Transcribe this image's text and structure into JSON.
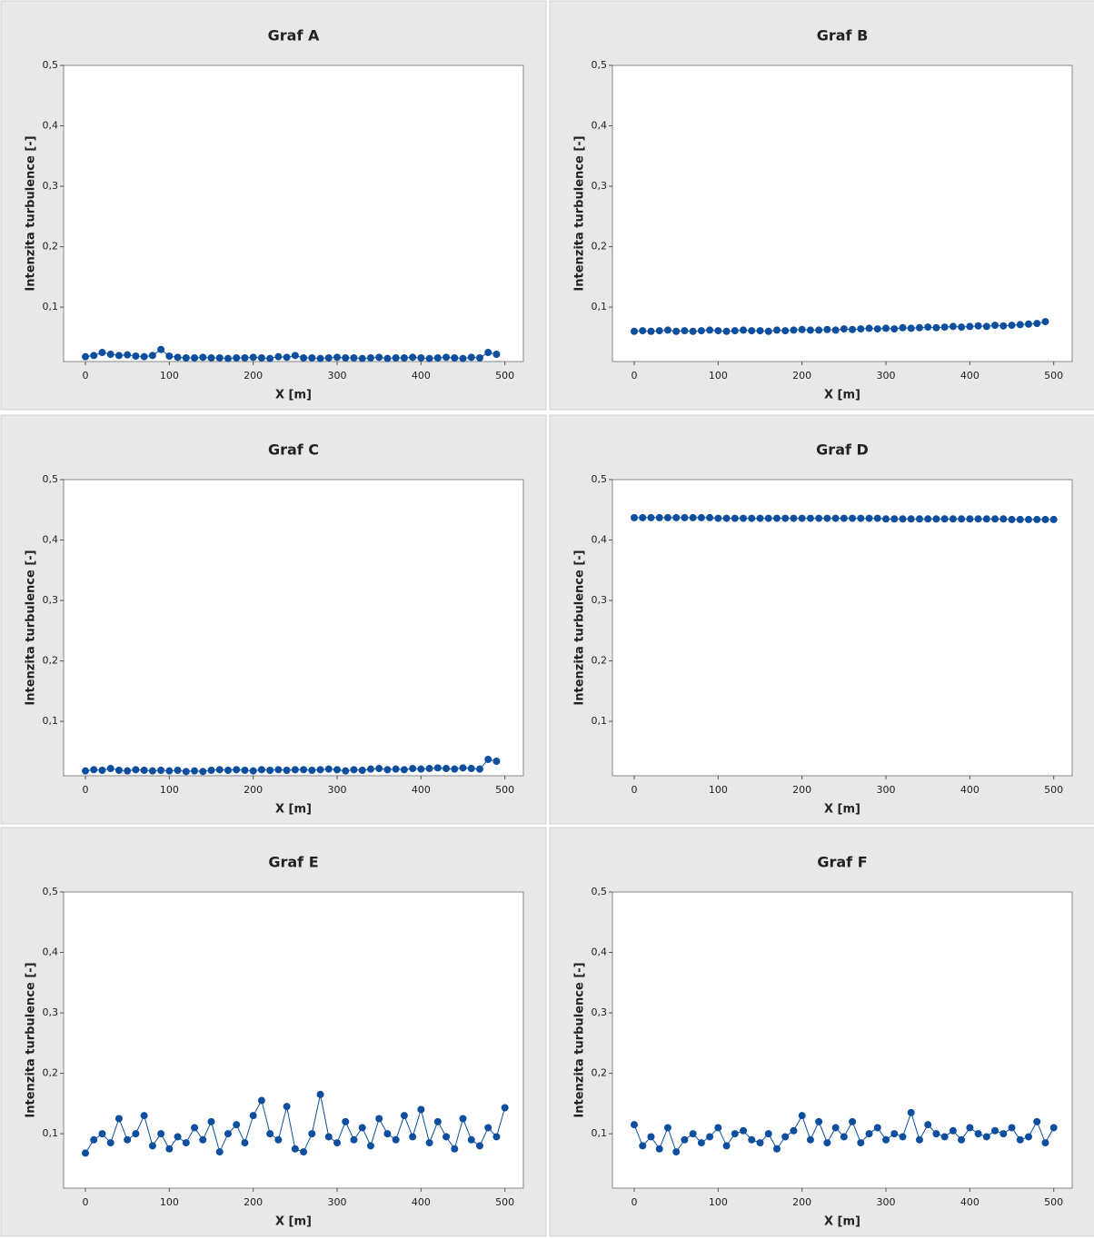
{
  "chart_data": [
    {
      "type": "line",
      "title": "Graf A",
      "xlabel": "X [m]",
      "ylabel": "Intenzita turbulence [-]",
      "color": "#0d4f9e",
      "xlim": [
        -26,
        522
      ],
      "ylim": [
        0.01,
        0.5
      ],
      "xticks": [
        0,
        100,
        200,
        300,
        400,
        500
      ],
      "yticks": [
        {
          "value": 0.1,
          "label": "0,1"
        },
        {
          "value": 0.2,
          "label": "0,2"
        },
        {
          "value": 0.3,
          "label": "0,3"
        },
        {
          "value": 0.4,
          "label": "0,4"
        },
        {
          "value": 0.5,
          "label": "0,5"
        }
      ],
      "x": [
        0,
        10,
        20,
        30,
        40,
        50,
        60,
        70,
        80,
        90,
        100,
        110,
        120,
        130,
        140,
        150,
        160,
        170,
        180,
        190,
        200,
        210,
        220,
        230,
        240,
        250,
        260,
        270,
        280,
        290,
        300,
        310,
        320,
        330,
        340,
        350,
        360,
        370,
        380,
        390,
        400,
        410,
        420,
        430,
        440,
        450,
        460,
        470,
        480,
        490
      ],
      "values": [
        0.018,
        0.02,
        0.025,
        0.022,
        0.02,
        0.021,
        0.019,
        0.018,
        0.02,
        0.03,
        0.019,
        0.017,
        0.016,
        0.016,
        0.017,
        0.016,
        0.016,
        0.015,
        0.016,
        0.016,
        0.017,
        0.016,
        0.015,
        0.018,
        0.017,
        0.02,
        0.016,
        0.016,
        0.015,
        0.016,
        0.017,
        0.016,
        0.016,
        0.015,
        0.016,
        0.017,
        0.015,
        0.016,
        0.016,
        0.017,
        0.016,
        0.015,
        0.016,
        0.017,
        0.016,
        0.015,
        0.017,
        0.016,
        0.025,
        0.022
      ]
    },
    {
      "type": "line",
      "title": "Graf B",
      "xlabel": "X [m]",
      "ylabel": "Intenzita turbulence [-]",
      "color": "#0d4f9e",
      "xlim": [
        -26,
        522
      ],
      "ylim": [
        0.01,
        0.5
      ],
      "xticks": [
        0,
        100,
        200,
        300,
        400,
        500
      ],
      "yticks": [
        {
          "value": 0.1,
          "label": "0,1"
        },
        {
          "value": 0.2,
          "label": "0,2"
        },
        {
          "value": 0.3,
          "label": "0,3"
        },
        {
          "value": 0.4,
          "label": "0,4"
        },
        {
          "value": 0.5,
          "label": "0,5"
        }
      ],
      "x": [
        0,
        10,
        20,
        30,
        40,
        50,
        60,
        70,
        80,
        90,
        100,
        110,
        120,
        130,
        140,
        150,
        160,
        170,
        180,
        190,
        200,
        210,
        220,
        230,
        240,
        250,
        260,
        270,
        280,
        290,
        300,
        310,
        320,
        330,
        340,
        350,
        360,
        370,
        380,
        390,
        400,
        410,
        420,
        430,
        440,
        450,
        460,
        470,
        480,
        490
      ],
      "values": [
        0.06,
        0.061,
        0.06,
        0.061,
        0.062,
        0.06,
        0.061,
        0.06,
        0.061,
        0.062,
        0.061,
        0.06,
        0.061,
        0.062,
        0.061,
        0.061,
        0.06,
        0.062,
        0.061,
        0.062,
        0.063,
        0.062,
        0.062,
        0.063,
        0.062,
        0.064,
        0.063,
        0.064,
        0.065,
        0.064,
        0.065,
        0.064,
        0.066,
        0.065,
        0.066,
        0.067,
        0.066,
        0.067,
        0.068,
        0.067,
        0.068,
        0.069,
        0.068,
        0.07,
        0.069,
        0.07,
        0.071,
        0.072,
        0.073,
        0.076
      ]
    },
    {
      "type": "line",
      "title": "Graf C",
      "xlabel": "X [m]",
      "ylabel": "Intenzita turbulence [-]",
      "color": "#0d4f9e",
      "xlim": [
        -26,
        522
      ],
      "ylim": [
        0.01,
        0.5
      ],
      "xticks": [
        0,
        100,
        200,
        300,
        400,
        500
      ],
      "yticks": [
        {
          "value": 0.1,
          "label": "0,1"
        },
        {
          "value": 0.2,
          "label": "0,2"
        },
        {
          "value": 0.3,
          "label": "0,3"
        },
        {
          "value": 0.4,
          "label": "0,4"
        },
        {
          "value": 0.5,
          "label": "0,5"
        }
      ],
      "x": [
        0,
        10,
        20,
        30,
        40,
        50,
        60,
        70,
        80,
        90,
        100,
        110,
        120,
        130,
        140,
        150,
        160,
        170,
        180,
        190,
        200,
        210,
        220,
        230,
        240,
        250,
        260,
        270,
        280,
        290,
        300,
        310,
        320,
        330,
        340,
        350,
        360,
        370,
        380,
        390,
        400,
        410,
        420,
        430,
        440,
        450,
        460,
        470,
        480,
        490
      ],
      "values": [
        0.018,
        0.02,
        0.019,
        0.022,
        0.019,
        0.018,
        0.02,
        0.019,
        0.018,
        0.019,
        0.018,
        0.019,
        0.017,
        0.018,
        0.017,
        0.019,
        0.02,
        0.019,
        0.02,
        0.019,
        0.018,
        0.02,
        0.019,
        0.02,
        0.019,
        0.02,
        0.02,
        0.019,
        0.02,
        0.021,
        0.02,
        0.018,
        0.02,
        0.019,
        0.021,
        0.022,
        0.02,
        0.021,
        0.02,
        0.022,
        0.021,
        0.022,
        0.023,
        0.022,
        0.021,
        0.023,
        0.022,
        0.021,
        0.037,
        0.034
      ]
    },
    {
      "type": "line",
      "title": "Graf D",
      "xlabel": "X [m]",
      "ylabel": "Intenzita turbulence [-]",
      "color": "#0d4f9e",
      "xlim": [
        -26,
        522
      ],
      "ylim": [
        0.01,
        0.5
      ],
      "xticks": [
        0,
        100,
        200,
        300,
        400,
        500
      ],
      "yticks": [
        {
          "value": 0.1,
          "label": "0,1"
        },
        {
          "value": 0.2,
          "label": "0,2"
        },
        {
          "value": 0.3,
          "label": "0,3"
        },
        {
          "value": 0.4,
          "label": "0,4"
        },
        {
          "value": 0.5,
          "label": "0,5"
        }
      ],
      "x": [
        0,
        10,
        20,
        30,
        40,
        50,
        60,
        70,
        80,
        90,
        100,
        110,
        120,
        130,
        140,
        150,
        160,
        170,
        180,
        190,
        200,
        210,
        220,
        230,
        240,
        250,
        260,
        270,
        280,
        290,
        300,
        310,
        320,
        330,
        340,
        350,
        360,
        370,
        380,
        390,
        400,
        410,
        420,
        430,
        440,
        450,
        460,
        470,
        480,
        490,
        500
      ],
      "values": [
        0.437,
        0.437,
        0.437,
        0.437,
        0.437,
        0.437,
        0.437,
        0.437,
        0.437,
        0.437,
        0.436,
        0.436,
        0.436,
        0.436,
        0.436,
        0.436,
        0.436,
        0.436,
        0.436,
        0.436,
        0.436,
        0.436,
        0.436,
        0.436,
        0.436,
        0.436,
        0.436,
        0.436,
        0.436,
        0.436,
        0.435,
        0.435,
        0.435,
        0.435,
        0.435,
        0.435,
        0.435,
        0.435,
        0.435,
        0.435,
        0.435,
        0.435,
        0.435,
        0.435,
        0.435,
        0.434,
        0.434,
        0.434,
        0.434,
        0.434,
        0.434
      ]
    },
    {
      "type": "line",
      "title": "Graf E",
      "xlabel": "X [m]",
      "ylabel": "Intenzita turbulence [-]",
      "color": "#0d4f9e",
      "xlim": [
        -26,
        522
      ],
      "ylim": [
        0.01,
        0.5
      ],
      "xticks": [
        0,
        100,
        200,
        300,
        400,
        500
      ],
      "yticks": [
        {
          "value": 0.1,
          "label": "0,1"
        },
        {
          "value": 0.2,
          "label": "0,2"
        },
        {
          "value": 0.3,
          "label": "0,3"
        },
        {
          "value": 0.4,
          "label": "0,4"
        },
        {
          "value": 0.5,
          "label": "0,5"
        }
      ],
      "x": [
        0,
        10,
        20,
        30,
        40,
        50,
        60,
        70,
        80,
        90,
        100,
        110,
        120,
        130,
        140,
        150,
        160,
        170,
        180,
        190,
        200,
        210,
        220,
        230,
        240,
        250,
        260,
        270,
        280,
        290,
        300,
        310,
        320,
        330,
        340,
        350,
        360,
        370,
        380,
        390,
        400,
        410,
        420,
        430,
        440,
        450,
        460,
        470,
        480,
        490,
        500
      ],
      "values": [
        0.068,
        0.09,
        0.1,
        0.085,
        0.125,
        0.09,
        0.1,
        0.13,
        0.08,
        0.1,
        0.075,
        0.095,
        0.085,
        0.11,
        0.09,
        0.12,
        0.07,
        0.1,
        0.115,
        0.085,
        0.13,
        0.155,
        0.1,
        0.09,
        0.145,
        0.075,
        0.07,
        0.1,
        0.165,
        0.095,
        0.085,
        0.12,
        0.09,
        0.11,
        0.08,
        0.125,
        0.1,
        0.09,
        0.13,
        0.095,
        0.14,
        0.085,
        0.12,
        0.095,
        0.075,
        0.125,
        0.09,
        0.08,
        0.11,
        0.095,
        0.143
      ]
    },
    {
      "type": "line",
      "title": "Graf F",
      "xlabel": "X [m]",
      "ylabel": "Intenzita turbulence [-]",
      "color": "#0d4f9e",
      "xlim": [
        -26,
        522
      ],
      "ylim": [
        0.01,
        0.5
      ],
      "xticks": [
        0,
        100,
        200,
        300,
        400,
        500
      ],
      "yticks": [
        {
          "value": 0.1,
          "label": "0,1"
        },
        {
          "value": 0.2,
          "label": "0,2"
        },
        {
          "value": 0.3,
          "label": "0,3"
        },
        {
          "value": 0.4,
          "label": "0,4"
        },
        {
          "value": 0.5,
          "label": "0,5"
        }
      ],
      "x": [
        0,
        10,
        20,
        30,
        40,
        50,
        60,
        70,
        80,
        90,
        100,
        110,
        120,
        130,
        140,
        150,
        160,
        170,
        180,
        190,
        200,
        210,
        220,
        230,
        240,
        250,
        260,
        270,
        280,
        290,
        300,
        310,
        320,
        330,
        340,
        350,
        360,
        370,
        380,
        390,
        400,
        410,
        420,
        430,
        440,
        450,
        460,
        470,
        480,
        490,
        500
      ],
      "values": [
        0.115,
        0.08,
        0.095,
        0.075,
        0.11,
        0.07,
        0.09,
        0.1,
        0.085,
        0.095,
        0.11,
        0.08,
        0.1,
        0.105,
        0.09,
        0.085,
        0.1,
        0.075,
        0.095,
        0.105,
        0.13,
        0.09,
        0.12,
        0.085,
        0.11,
        0.095,
        0.12,
        0.085,
        0.1,
        0.11,
        0.09,
        0.1,
        0.095,
        0.135,
        0.09,
        0.115,
        0.1,
        0.095,
        0.105,
        0.09,
        0.11,
        0.1,
        0.095,
        0.105,
        0.1,
        0.11,
        0.09,
        0.095,
        0.12,
        0.085,
        0.11
      ]
    }
  ]
}
